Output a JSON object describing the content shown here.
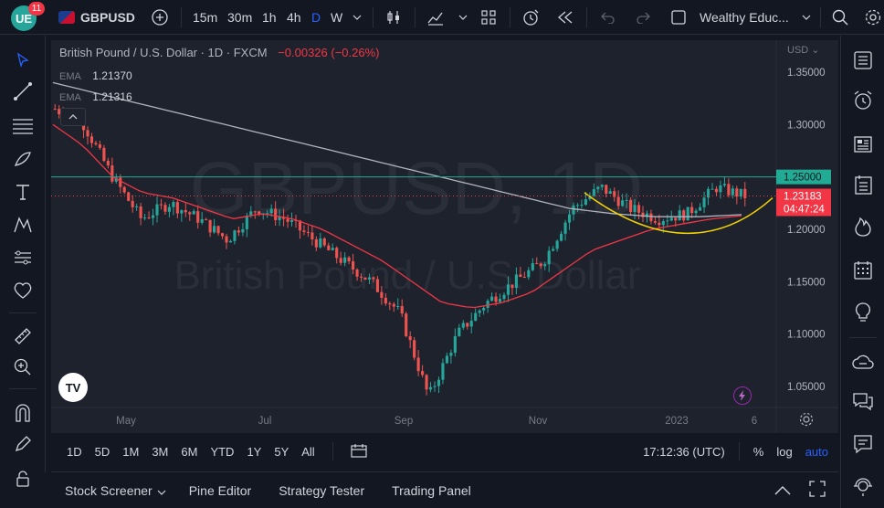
{
  "topbar": {
    "notification_count": "11",
    "symbol": "GBPUSD",
    "intervals": [
      "15m",
      "30m",
      "1h",
      "4h",
      "D",
      "W"
    ],
    "active_interval": "D",
    "layout_name": "Wealthy Educ..."
  },
  "chart": {
    "legend_title": "British Pound / U.S. Dollar · 1D · FXCM",
    "legend_change": "−0.00326 (−0.26%)",
    "ema1_label": "EMA",
    "ema1_value": "1.21370",
    "ema2_label": "EMA",
    "ema2_value": "1.21316",
    "watermark_symbol": "GBPUSD, 1D",
    "watermark_name": "British Pound / U.S. Dollar",
    "currency": "USD",
    "price_ticks": [
      "1.35000",
      "1.30000",
      "1.25000",
      "1.20000",
      "1.15000",
      "1.10000",
      "1.05000"
    ],
    "time_ticks": [
      "May",
      "Jul",
      "Sep",
      "Nov",
      "2023",
      "6"
    ],
    "hline_label": "1.25000",
    "last_price": "1.23183",
    "countdown": "04:47:24",
    "colors": {
      "up": "#26a69a",
      "down": "#ef5350",
      "hline": "#22ab94",
      "ema_fast": "#f23645",
      "ema_slow": "#b2b5be",
      "curve": "#f5d300",
      "label_bg": "#f23645",
      "accent": "#2962ff"
    }
  },
  "chart_data": {
    "type": "candlestick",
    "x": [
      "May",
      "Jul",
      "Sep",
      "Nov",
      "2023"
    ],
    "close_samples": [
      1.315,
      1.3,
      1.25,
      1.21,
      1.225,
      1.21,
      1.19,
      1.22,
      1.21,
      1.19,
      1.17,
      1.15,
      1.12,
      1.04,
      1.1,
      1.13,
      1.15,
      1.17,
      1.22,
      1.24,
      1.22,
      1.21,
      1.215,
      1.24,
      1.232
    ],
    "ema_fast": [
      1.3,
      1.28,
      1.25,
      1.235,
      1.23,
      1.22,
      1.21,
      1.215,
      1.21,
      1.2,
      1.185,
      1.17,
      1.15,
      1.13,
      1.125,
      1.13,
      1.14,
      1.16,
      1.18,
      1.19,
      1.2,
      1.205,
      1.21,
      1.213
    ],
    "ema_slow": [
      1.34,
      1.33,
      1.32,
      1.31,
      1.3,
      1.29,
      1.28,
      1.27,
      1.26,
      1.25,
      1.24,
      1.23,
      1.22,
      1.215,
      1.212,
      1.212,
      1.214
    ],
    "horizontal_line": 1.25,
    "last_price": 1.23183,
    "ylim": [
      1.03,
      1.37
    ],
    "ylabel": "USD"
  },
  "timeframes": [
    "1D",
    "5D",
    "1M",
    "3M",
    "6M",
    "YTD",
    "1Y",
    "5Y",
    "All"
  ],
  "clock": "17:12:36 (UTC)",
  "scale_opts": [
    "%",
    "log",
    "auto"
  ],
  "bottom_tabs": [
    "Stock Screener",
    "Pine Editor",
    "Strategy Tester",
    "Trading Panel"
  ]
}
